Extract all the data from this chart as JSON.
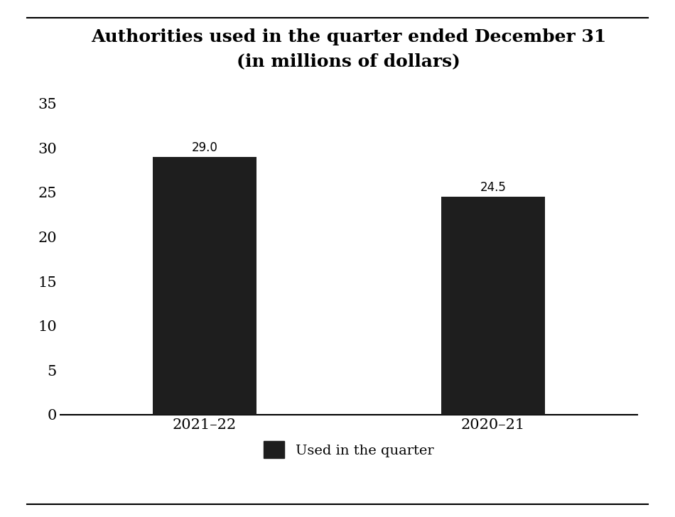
{
  "title_line1": "Authorities used in the quarter ended December 31",
  "title_line2": "(in millions of dollars)",
  "categories": [
    "2021–22",
    "2020–21"
  ],
  "values": [
    29.0,
    24.5
  ],
  "bar_color": "#1e1e1e",
  "ylim": [
    0,
    37
  ],
  "yticks": [
    0,
    5,
    10,
    15,
    20,
    25,
    30,
    35
  ],
  "legend_label": "Used in the quarter",
  "title_fontsize": 18,
  "tick_fontsize": 15,
  "label_fontsize": 14,
  "bar_width": 0.18,
  "background_color": "#ffffff",
  "border_color": "#000000",
  "annotation_fontsize": 12
}
